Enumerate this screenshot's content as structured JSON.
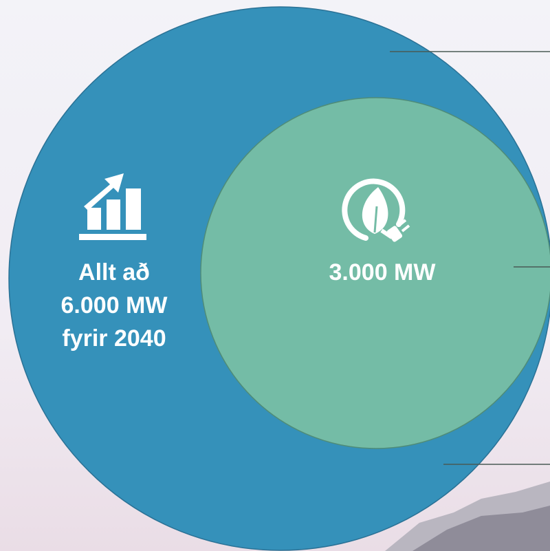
{
  "outer": {
    "lines": [
      "Allt að",
      "6.000 MW",
      "fyrir 2040"
    ]
  },
  "inner": {
    "label": "3.000 MW"
  }
}
